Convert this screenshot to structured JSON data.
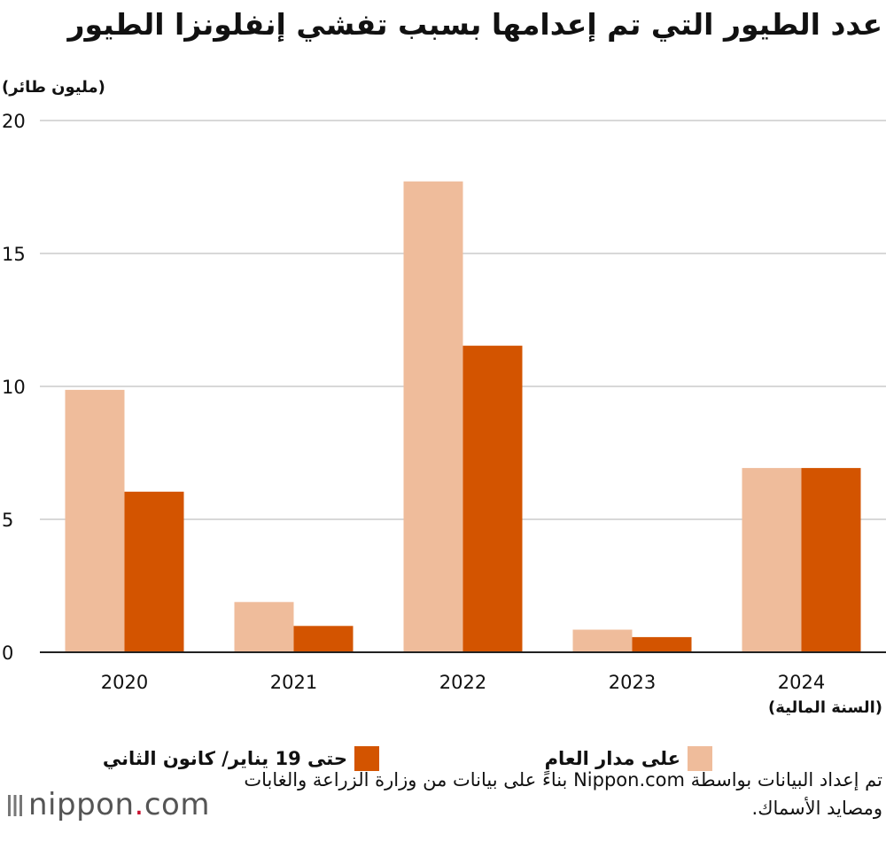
{
  "title": "عدد الطيور التي تم إعدامها بسبب تفشي إنفلونزا الطيور",
  "unit_label": "(مليون طائر)",
  "x_axis_title": "(السنة المالية)",
  "legend": {
    "full_year": "على مدار العام",
    "until_jan19": "حتى 19 يناير/ كانون الثاني"
  },
  "source_note": "تم إعداد البيانات بواسطة Nippon.com بناءً على بيانات من وزارة الزراعة والغابات ومصايد الأسماك.",
  "logo": {
    "name": "nippon",
    "dot": ".",
    "tld": "com"
  },
  "colors": {
    "full_year": "#efbc9b",
    "until_jan19": "#d35400",
    "grid": "#cccccc",
    "axis": "#222222"
  },
  "chart_data": {
    "type": "bar",
    "categories": [
      "2020",
      "2021",
      "2022",
      "2023",
      "2024"
    ],
    "series": [
      {
        "name": "على مدار العام",
        "values": [
          9.87,
          1.89,
          17.71,
          0.85,
          6.93
        ]
      },
      {
        "name": "حتى 19 يناير/ كانون الثاني",
        "values": [
          6.04,
          0.99,
          11.53,
          0.57,
          6.93
        ]
      }
    ],
    "yticks": [
      0,
      5,
      10,
      15,
      20
    ],
    "ylim": [
      0,
      20
    ],
    "grid": true,
    "legend_position": "bottom"
  }
}
